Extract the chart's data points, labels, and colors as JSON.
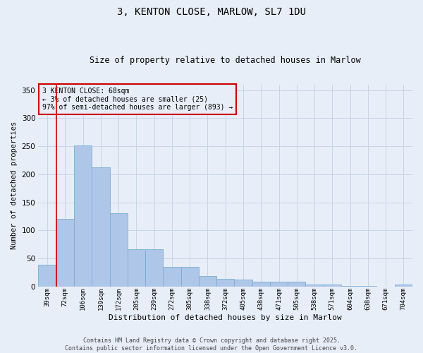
{
  "title": "3, KENTON CLOSE, MARLOW, SL7 1DU",
  "subtitle": "Size of property relative to detached houses in Marlow",
  "xlabel": "Distribution of detached houses by size in Marlow",
  "ylabel": "Number of detached properties",
  "categories": [
    "39sqm",
    "72sqm",
    "106sqm",
    "139sqm",
    "172sqm",
    "205sqm",
    "239sqm",
    "272sqm",
    "305sqm",
    "338sqm",
    "372sqm",
    "405sqm",
    "438sqm",
    "471sqm",
    "505sqm",
    "538sqm",
    "571sqm",
    "604sqm",
    "638sqm",
    "671sqm",
    "704sqm"
  ],
  "values": [
    39,
    121,
    251,
    212,
    130,
    66,
    66,
    35,
    35,
    19,
    14,
    12,
    8,
    8,
    9,
    4,
    3,
    1,
    1,
    0,
    4
  ],
  "bar_color": "#aec6e8",
  "bar_edge_color": "#7bafd4",
  "grid_color": "#c8d4e8",
  "bg_color": "#e8eef8",
  "property_line_x": 0.5,
  "annotation_text": "3 KENTON CLOSE: 68sqm\n← 3% of detached houses are smaller (25)\n97% of semi-detached houses are larger (893) →",
  "annotation_box_color": "#cc0000",
  "footer": "Contains HM Land Registry data © Crown copyright and database right 2025.\nContains public sector information licensed under the Open Government Licence v3.0.",
  "ylim": [
    0,
    360
  ],
  "yticks": [
    0,
    50,
    100,
    150,
    200,
    250,
    300,
    350
  ]
}
